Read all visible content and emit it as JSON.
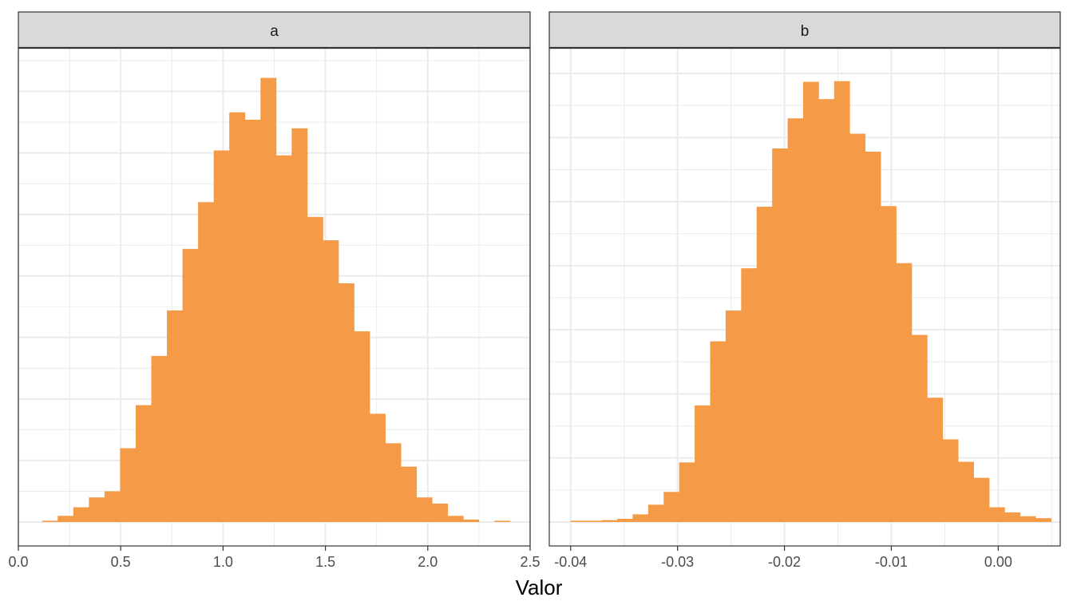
{
  "chart_data": {
    "type": "bar",
    "xlabel": "Valor",
    "ylabel": "",
    "fill_color": "#F59B47",
    "grid": true,
    "panels": [
      {
        "title": "a",
        "xlim": [
          0.0,
          2.5
        ],
        "xticks": [
          0.0,
          0.5,
          1.0,
          1.5,
          2.0,
          2.5
        ],
        "xtick_labels": [
          "0.0",
          "0.5",
          "1.0",
          "1.5",
          "2.0",
          "2.5"
        ],
        "ylim": [
          0,
          3.75
        ],
        "bin_width": 0.0762,
        "bins_start": 0.116,
        "counts": [
          0.01,
          0.05,
          0.12,
          0.2,
          0.25,
          0.6,
          0.95,
          1.35,
          1.72,
          2.22,
          2.6,
          3.02,
          3.33,
          3.27,
          3.61,
          2.98,
          3.2,
          2.48,
          2.29,
          1.94,
          1.55,
          0.88,
          0.64,
          0.45,
          0.2,
          0.15,
          0.05,
          0.02,
          0.0,
          0.01
        ]
      },
      {
        "title": "b",
        "xlim": [
          -0.042,
          0.0058
        ],
        "xticks": [
          -0.04,
          -0.03,
          -0.02,
          -0.01,
          0.0
        ],
        "xtick_labels": [
          "-0.04",
          "-0.03",
          "-0.02",
          "-0.01",
          "0.00"
        ],
        "ylim": [
          0,
          3.75
        ],
        "bin_width": 0.00145,
        "bins_start": -0.04,
        "counts": [
          0.02,
          0.02,
          0.03,
          0.05,
          0.12,
          0.27,
          0.47,
          0.93,
          1.82,
          2.82,
          3.3,
          3.96,
          4.92,
          5.83,
          6.3,
          6.87,
          6.6,
          6.88,
          6.06,
          5.78,
          4.93,
          4.04,
          2.92,
          1.94,
          1.29,
          0.94,
          0.69,
          0.23,
          0.15,
          0.09,
          0.06
        ],
        "ylim_override": [
          0,
          7.2
        ]
      }
    ]
  }
}
